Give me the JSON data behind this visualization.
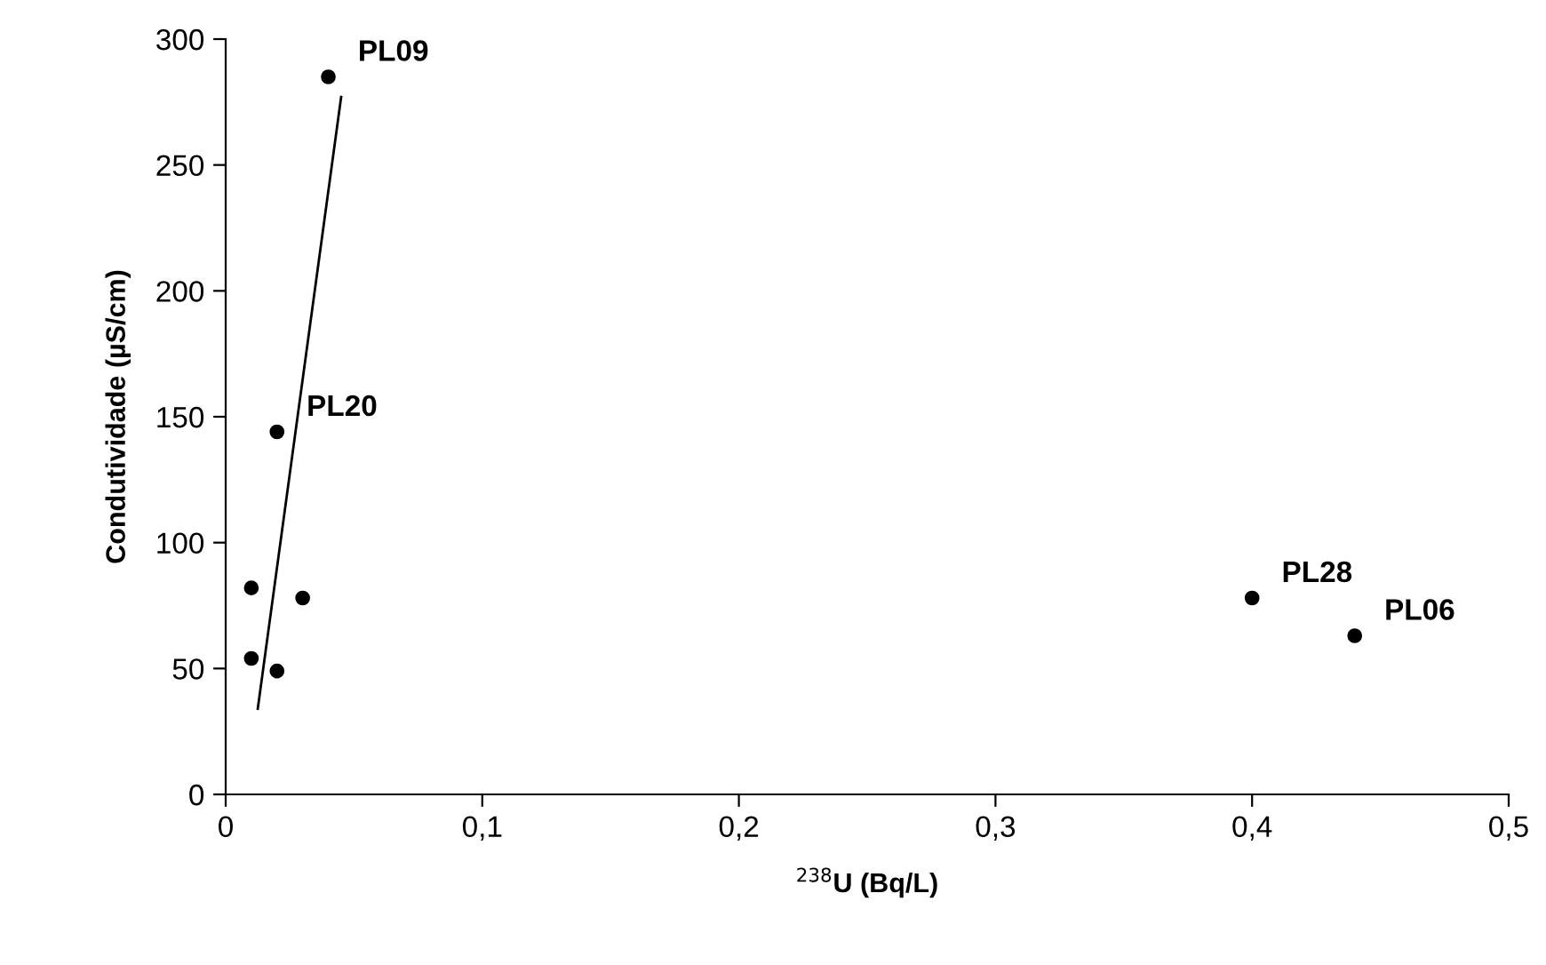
{
  "chart_data": {
    "type": "scatter",
    "xlabel": "$^{238}$U (Bq/L)",
    "ylabel": "Condutividade (µS/cm)",
    "x": [
      0.04,
      0.02,
      0.01,
      0.03,
      0.01,
      0.02,
      0.4,
      0.44
    ],
    "series": [
      {
        "color": "#000000",
        "values": [
          285,
          144,
          82,
          78,
          54,
          49,
          78,
          63
        ]
      },
      {
        "type": "line",
        "color": "#000000",
        "x": [
          0.0125,
          0.045
        ],
        "values": [
          34,
          277
        ],
        "marker": "none"
      }
    ],
    "annotations": [
      {
        "text": "PL09",
        "x": 0.04,
        "y": 285
      },
      {
        "text": "PL20",
        "x": 0.02,
        "y": 144
      },
      {
        "text": "PL28",
        "x": 0.4,
        "y": 78
      },
      {
        "text": "PL06",
        "x": 0.44,
        "y": 63
      }
    ],
    "xlim": [
      0,
      0.5
    ],
    "xticks": [
      {
        "value": 0,
        "label": "0"
      },
      {
        "value": 0.1,
        "label": "0,1"
      },
      {
        "value": 0.2,
        "label": "0,2"
      },
      {
        "value": 0.3,
        "label": "0,3"
      },
      {
        "value": 0.4,
        "label": "0,4"
      },
      {
        "value": 0.5,
        "label": "0,5"
      }
    ],
    "ylim": [
      0,
      300
    ],
    "yticks": [
      0,
      50,
      100,
      150,
      200,
      250,
      300
    ],
    "grid": false,
    "legend": false,
    "marker": "circle"
  }
}
